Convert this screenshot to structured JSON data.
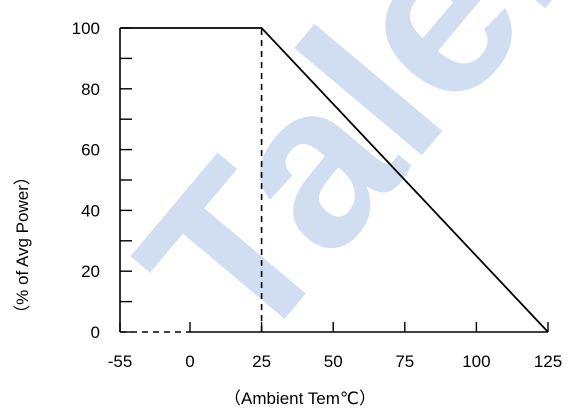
{
  "watermark": {
    "text": "Talent M",
    "color": "#c9d8ee"
  },
  "chart_data": {
    "type": "line",
    "xlabel": "（Ambient Tem℃）",
    "ylabel": "（% of Avg Power）",
    "x_ticks": [
      -55,
      0,
      25,
      50,
      75,
      100,
      125
    ],
    "y_ticks": [
      0,
      20,
      40,
      60,
      80,
      100
    ],
    "y_minor_ticks": [
      10,
      30,
      50,
      70,
      90
    ],
    "xlim": [
      -55,
      125
    ],
    "ylim": [
      0,
      100
    ],
    "grid": false,
    "series": [
      {
        "style": "solid",
        "points": [
          [
            -55,
            100
          ],
          [
            25,
            100
          ],
          [
            125,
            0
          ]
        ]
      }
    ],
    "reference_lines": [
      {
        "style": "dashed",
        "points": [
          [
            25,
            0
          ],
          [
            25,
            100
          ]
        ]
      },
      {
        "style": "dashed",
        "points": [
          [
            -55,
            0
          ],
          [
            0,
            0
          ]
        ]
      }
    ],
    "line_color": "#000000"
  }
}
